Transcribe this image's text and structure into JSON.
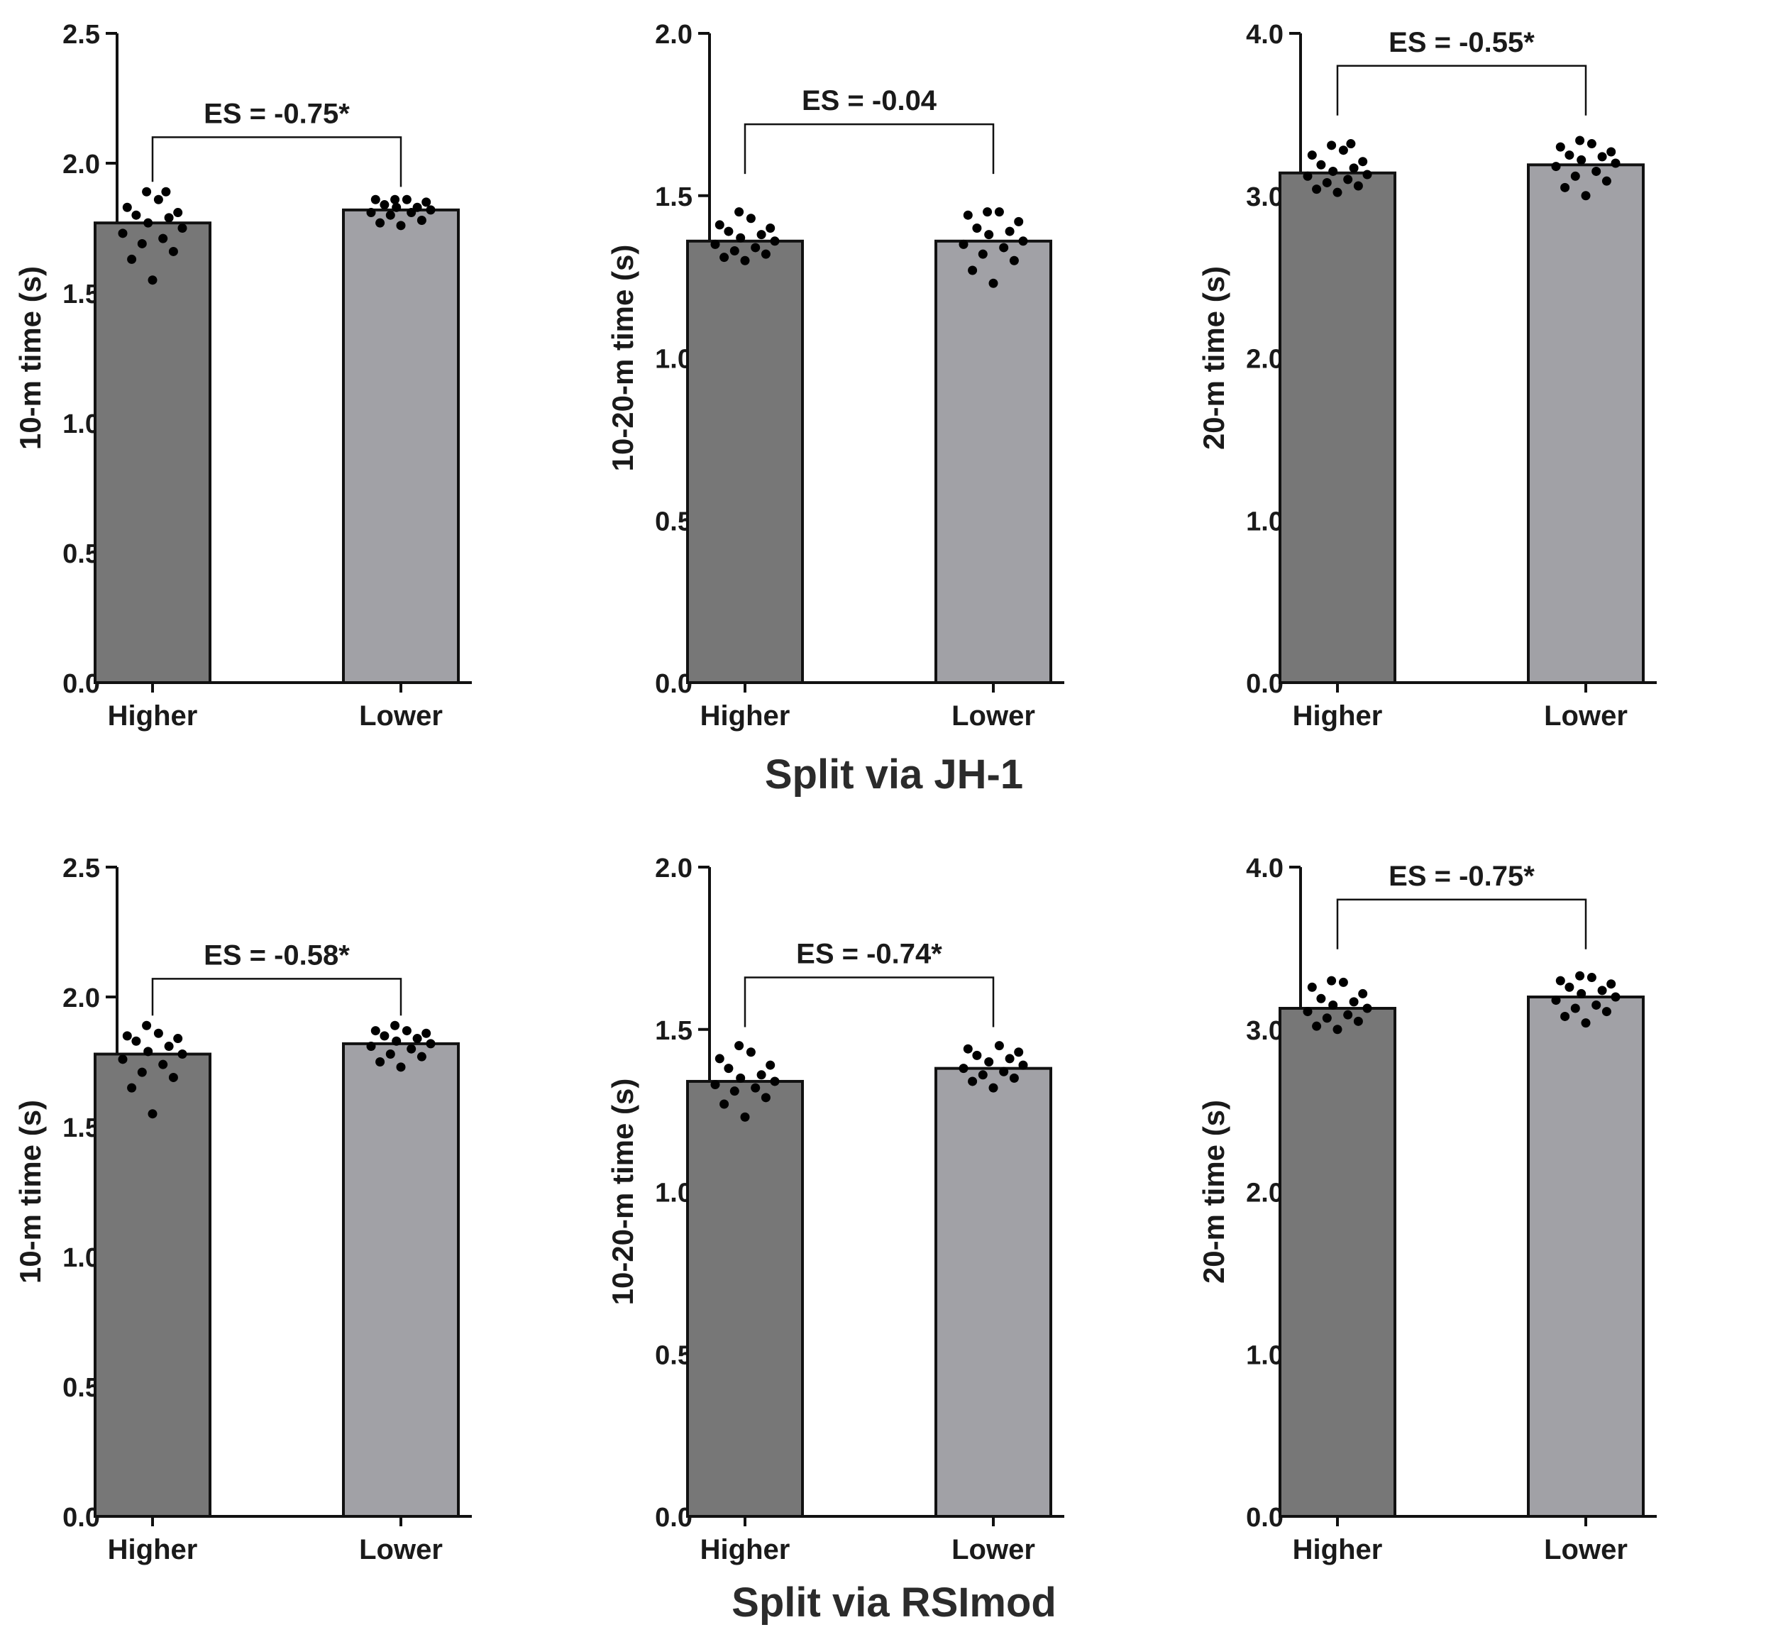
{
  "group_titles": {
    "top": "Split via JH-1",
    "bottom": "Split via RSImod"
  },
  "colors": {
    "higher_bar": "#777777",
    "lower_bar": "#a1a1a6",
    "bar_edge": "#111111",
    "points": "#000000",
    "axis": "#111111"
  },
  "chart_data": [
    {
      "type": "bar",
      "row": 0,
      "col": 0,
      "title": "",
      "xlabel": "",
      "ylabel": "10-m time (s)",
      "ylim": [
        0,
        2.5
      ],
      "yticks": [
        "0.0",
        "0.5",
        "1.0",
        "1.5",
        "2.0",
        "2.5"
      ],
      "categories": [
        "Higher",
        "Lower"
      ],
      "values": [
        1.77,
        1.82
      ],
      "points": [
        [
          1.55,
          1.63,
          1.66,
          1.69,
          1.71,
          1.73,
          1.75,
          1.77,
          1.79,
          1.8,
          1.81,
          1.83,
          1.86,
          1.89,
          1.89
        ],
        [
          1.76,
          1.77,
          1.78,
          1.8,
          1.81,
          1.81,
          1.82,
          1.83,
          1.83,
          1.84,
          1.85,
          1.86,
          1.86,
          1.86
        ]
      ],
      "annotation": "ES = -0.75*",
      "bracket_y": 2.1
    },
    {
      "type": "bar",
      "row": 0,
      "col": 1,
      "title": "",
      "xlabel": "",
      "ylabel": "10-20-m time (s)",
      "ylim": [
        0,
        2.0
      ],
      "yticks": [
        "0.0",
        "0.5",
        "1.0",
        "1.5",
        "2.0"
      ],
      "categories": [
        "Higher",
        "Lower"
      ],
      "values": [
        1.36,
        1.36
      ],
      "points": [
        [
          1.3,
          1.31,
          1.32,
          1.33,
          1.34,
          1.35,
          1.36,
          1.37,
          1.38,
          1.39,
          1.4,
          1.41,
          1.43,
          1.45
        ],
        [
          1.23,
          1.27,
          1.3,
          1.32,
          1.34,
          1.35,
          1.36,
          1.38,
          1.39,
          1.4,
          1.42,
          1.44,
          1.45,
          1.45
        ]
      ],
      "annotation": "ES = -0.04",
      "bracket_y": 1.72
    },
    {
      "type": "bar",
      "row": 0,
      "col": 2,
      "title": "",
      "xlabel": "",
      "ylabel": "20-m time (s)",
      "ylim": [
        0,
        4.0
      ],
      "yticks": [
        "0.0",
        "1.0",
        "2.0",
        "3.0",
        "4.0"
      ],
      "categories": [
        "Higher",
        "Lower"
      ],
      "values": [
        3.14,
        3.19
      ],
      "points": [
        [
          3.02,
          3.04,
          3.06,
          3.08,
          3.1,
          3.12,
          3.13,
          3.15,
          3.17,
          3.19,
          3.21,
          3.25,
          3.28,
          3.31,
          3.32
        ],
        [
          3.0,
          3.05,
          3.09,
          3.12,
          3.15,
          3.18,
          3.2,
          3.22,
          3.24,
          3.25,
          3.27,
          3.3,
          3.32,
          3.34
        ]
      ],
      "annotation": "ES = -0.55*",
      "bracket_y": 3.8
    },
    {
      "type": "bar",
      "row": 1,
      "col": 0,
      "title": "",
      "xlabel": "",
      "ylabel": "10-m time (s)",
      "ylim": [
        0,
        2.5
      ],
      "yticks": [
        "0.0",
        "0.5",
        "1.0",
        "1.5",
        "2.0",
        "2.5"
      ],
      "categories": [
        "Higher",
        "Lower"
      ],
      "values": [
        1.78,
        1.82
      ],
      "points": [
        [
          1.55,
          1.65,
          1.69,
          1.71,
          1.74,
          1.76,
          1.78,
          1.79,
          1.81,
          1.83,
          1.84,
          1.85,
          1.86,
          1.89
        ],
        [
          1.73,
          1.75,
          1.77,
          1.78,
          1.8,
          1.81,
          1.82,
          1.83,
          1.84,
          1.85,
          1.86,
          1.87,
          1.87,
          1.89
        ]
      ],
      "annotation": "ES = -0.58*",
      "bracket_y": 2.07
    },
    {
      "type": "bar",
      "row": 1,
      "col": 1,
      "title": "",
      "xlabel": "",
      "ylabel": "10-20-m time (s)",
      "ylim": [
        0,
        2.0
      ],
      "yticks": [
        "0.0",
        "0.5",
        "1.0",
        "1.5",
        "2.0"
      ],
      "categories": [
        "Higher",
        "Lower"
      ],
      "values": [
        1.34,
        1.38
      ],
      "points": [
        [
          1.23,
          1.27,
          1.29,
          1.31,
          1.32,
          1.33,
          1.34,
          1.35,
          1.36,
          1.38,
          1.39,
          1.41,
          1.43,
          1.45
        ],
        [
          1.32,
          1.34,
          1.35,
          1.36,
          1.37,
          1.38,
          1.39,
          1.4,
          1.41,
          1.42,
          1.43,
          1.44,
          1.45
        ]
      ],
      "annotation": "ES = -0.74*",
      "bracket_y": 1.66
    },
    {
      "type": "bar",
      "row": 1,
      "col": 2,
      "title": "",
      "xlabel": "",
      "ylabel": "20-m time (s)",
      "ylim": [
        0,
        4.0
      ],
      "yticks": [
        "0.0",
        "1.0",
        "2.0",
        "3.0",
        "4.0"
      ],
      "categories": [
        "Higher",
        "Lower"
      ],
      "values": [
        3.13,
        3.2
      ],
      "points": [
        [
          3.0,
          3.02,
          3.05,
          3.07,
          3.09,
          3.11,
          3.13,
          3.15,
          3.17,
          3.19,
          3.22,
          3.26,
          3.29,
          3.3
        ],
        [
          3.04,
          3.08,
          3.11,
          3.13,
          3.15,
          3.18,
          3.2,
          3.22,
          3.24,
          3.26,
          3.28,
          3.3,
          3.32,
          3.33
        ]
      ],
      "annotation": "ES = -0.75*",
      "bracket_y": 3.8
    }
  ]
}
